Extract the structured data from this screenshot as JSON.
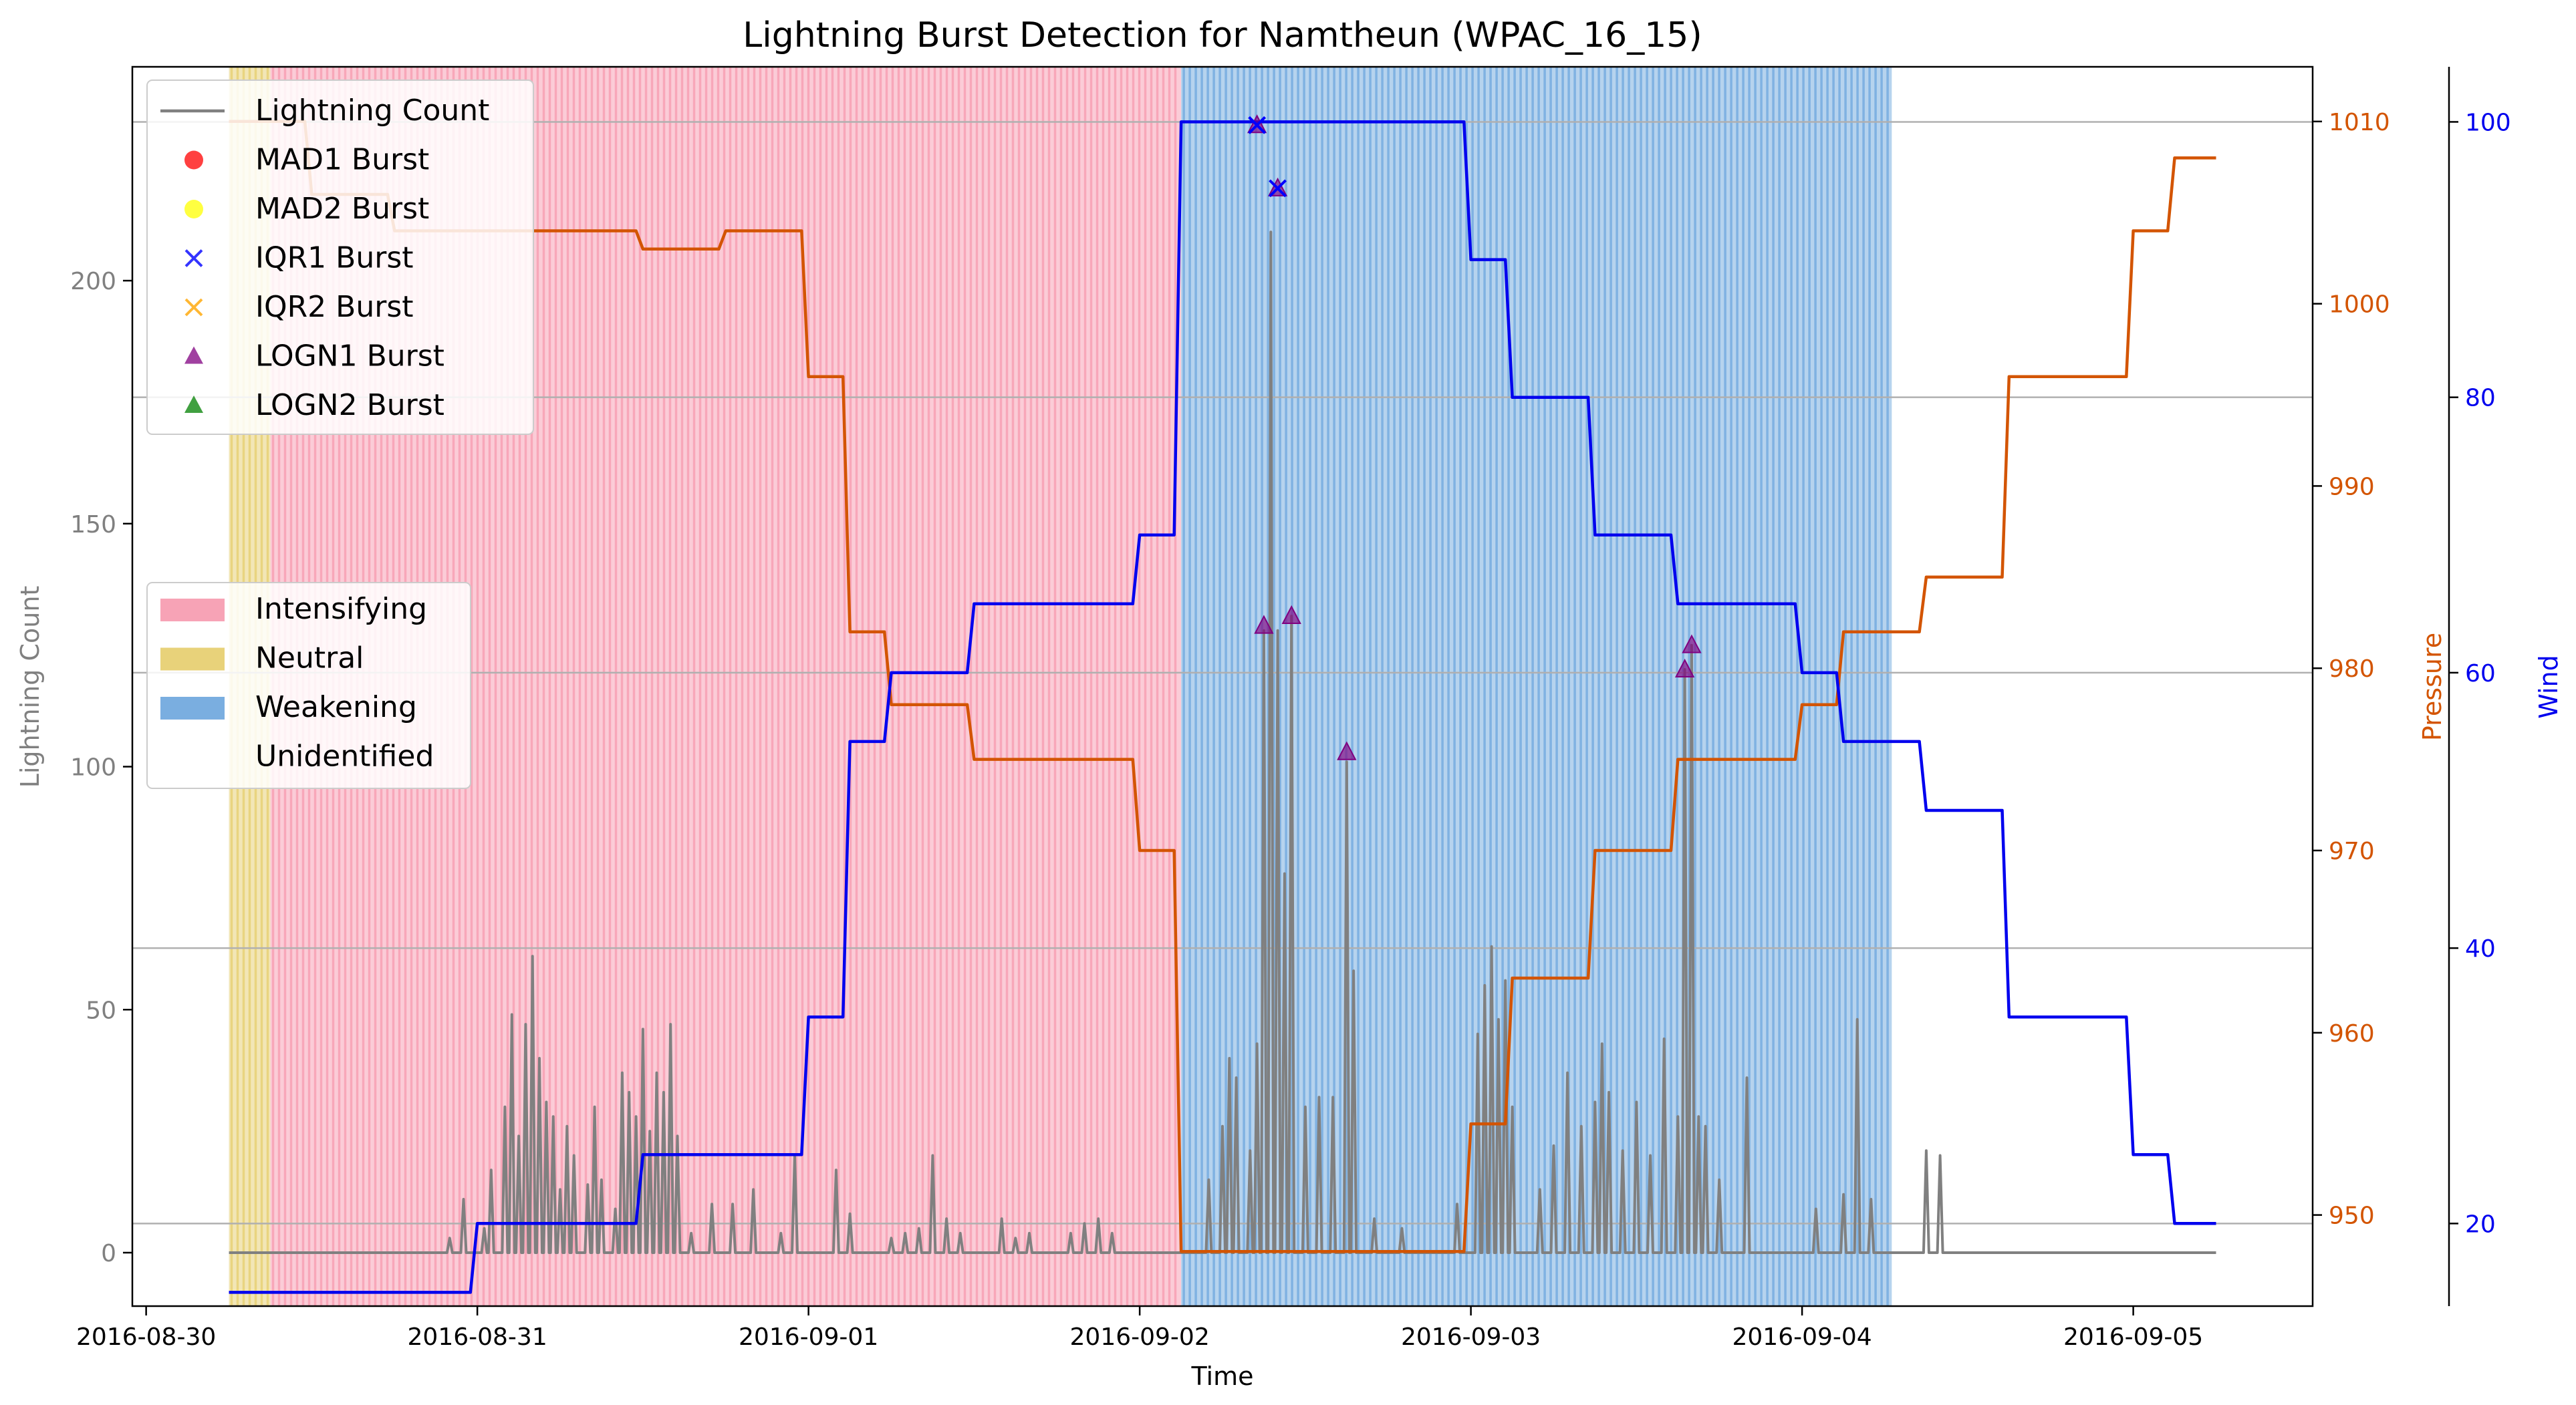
{
  "chart_data": {
    "type": "line",
    "title": "Lightning Burst Detection for Namtheun (WPAC_16_15)",
    "xlabel": "Time",
    "ylabel_left": "Lightning Count",
    "ylabel_pressure": "Pressure",
    "ylabel_wind": "Wind",
    "x_range": [
      "2016-08-29T23:00",
      "2016-09-05T13:00"
    ],
    "x_ticks": [
      "2016-08-30",
      "2016-08-31",
      "2016-09-01",
      "2016-09-02",
      "2016-09-03",
      "2016-09-04",
      "2016-09-05"
    ],
    "ylim_count": [
      -11,
      244
    ],
    "yticks_count": [
      0,
      50,
      100,
      150,
      200
    ],
    "ylim_pressure": [
      945,
      1013
    ],
    "yticks_pressure": [
      950,
      960,
      970,
      980,
      990,
      1000,
      1010
    ],
    "ylim_wind": [
      14,
      104
    ],
    "yticks_wind": [
      20,
      40,
      60,
      80,
      100
    ],
    "grid": "horizontal",
    "colors": {
      "count": "#808080",
      "pressure": "#d35400",
      "wind": "#0000ee",
      "intensifying": "#f7a3b6",
      "neutral": "#e8d27a",
      "weakening": "#7aaee0"
    },
    "phases": [
      {
        "label": "Neutral",
        "start": "2016-08-30T06:00",
        "end": "2016-08-30T09:00",
        "color": "#e8d27a"
      },
      {
        "label": "Intensifying",
        "start": "2016-08-30T09:00",
        "end": "2016-09-02T03:00",
        "color": "#f7a3b6"
      },
      {
        "label": "Weakening",
        "start": "2016-09-02T03:00",
        "end": "2016-09-04T06:30",
        "color": "#7aaee0"
      }
    ],
    "legend_lines": {
      "placement": "upper-left",
      "entries": [
        {
          "label": "Lightning Count",
          "marker": "line",
          "color": "#808080"
        },
        {
          "label": "MAD1 Burst",
          "marker": "circle",
          "color": "#ff0000"
        },
        {
          "label": "MAD2 Burst",
          "marker": "circle",
          "color": "#ffff00"
        },
        {
          "label": "IQR1 Burst",
          "marker": "x",
          "color": "#0000ff"
        },
        {
          "label": "IQR2 Burst",
          "marker": "x",
          "color": "#ffa500"
        },
        {
          "label": "LOGN1 Burst",
          "marker": "triangle",
          "color": "#800080"
        },
        {
          "label": "LOGN2 Burst",
          "marker": "triangle",
          "color": "#008000"
        }
      ]
    },
    "legend_phases": {
      "placement": "center-left",
      "entries": [
        {
          "label": "Intensifying",
          "color": "#f7a3b6"
        },
        {
          "label": "Neutral",
          "color": "#e8d27a"
        },
        {
          "label": "Weakening",
          "color": "#7aaee0"
        },
        {
          "label": "Unidentified",
          "color": "#ffffff"
        }
      ]
    },
    "pressure": [
      {
        "t": "2016-08-30T06:00",
        "v": 1010
      },
      {
        "t": "2016-08-30T12:00",
        "v": 1006
      },
      {
        "t": "2016-08-30T18:00",
        "v": 1004
      },
      {
        "t": "2016-08-31T00:00",
        "v": 1004
      },
      {
        "t": "2016-08-31T06:00",
        "v": 1004
      },
      {
        "t": "2016-08-31T12:00",
        "v": 1003
      },
      {
        "t": "2016-08-31T18:00",
        "v": 1004
      },
      {
        "t": "2016-09-01T00:00",
        "v": 996
      },
      {
        "t": "2016-09-01T03:00",
        "v": 982
      },
      {
        "t": "2016-09-01T06:00",
        "v": 978
      },
      {
        "t": "2016-09-01T12:00",
        "v": 975
      },
      {
        "t": "2016-09-01T18:00",
        "v": 975
      },
      {
        "t": "2016-09-02T00:00",
        "v": 970
      },
      {
        "t": "2016-09-02T03:00",
        "v": 948
      },
      {
        "t": "2016-09-02T06:00",
        "v": 948
      },
      {
        "t": "2016-09-02T12:00",
        "v": 948
      },
      {
        "t": "2016-09-02T18:00",
        "v": 948
      },
      {
        "t": "2016-09-03T00:00",
        "v": 955
      },
      {
        "t": "2016-09-03T03:00",
        "v": 963
      },
      {
        "t": "2016-09-03T06:00",
        "v": 963
      },
      {
        "t": "2016-09-03T09:00",
        "v": 970
      },
      {
        "t": "2016-09-03T15:00",
        "v": 975
      },
      {
        "t": "2016-09-03T21:00",
        "v": 975
      },
      {
        "t": "2016-09-04T00:00",
        "v": 978
      },
      {
        "t": "2016-09-04T03:00",
        "v": 982
      },
      {
        "t": "2016-09-04T09:00",
        "v": 985
      },
      {
        "t": "2016-09-04T15:00",
        "v": 996
      },
      {
        "t": "2016-09-05T00:00",
        "v": 1004
      },
      {
        "t": "2016-09-05T03:00",
        "v": 1008
      },
      {
        "t": "2016-09-05T06:00",
        "v": 1008
      }
    ],
    "wind": [
      {
        "t": "2016-08-30T06:00",
        "v": 15
      },
      {
        "t": "2016-08-30T12:00",
        "v": 15
      },
      {
        "t": "2016-08-30T18:00",
        "v": 15
      },
      {
        "t": "2016-08-31T00:00",
        "v": 20
      },
      {
        "t": "2016-08-31T06:00",
        "v": 20
      },
      {
        "t": "2016-08-31T12:00",
        "v": 25
      },
      {
        "t": "2016-08-31T18:00",
        "v": 25
      },
      {
        "t": "2016-09-01T00:00",
        "v": 35
      },
      {
        "t": "2016-09-01T03:00",
        "v": 55
      },
      {
        "t": "2016-09-01T06:00",
        "v": 60
      },
      {
        "t": "2016-09-01T12:00",
        "v": 65
      },
      {
        "t": "2016-09-01T18:00",
        "v": 65
      },
      {
        "t": "2016-09-02T00:00",
        "v": 70
      },
      {
        "t": "2016-09-02T03:00",
        "v": 100
      },
      {
        "t": "2016-09-02T12:00",
        "v": 100
      },
      {
        "t": "2016-09-02T18:00",
        "v": 100
      },
      {
        "t": "2016-09-03T00:00",
        "v": 90
      },
      {
        "t": "2016-09-03T03:00",
        "v": 80
      },
      {
        "t": "2016-09-03T09:00",
        "v": 70
      },
      {
        "t": "2016-09-03T15:00",
        "v": 65
      },
      {
        "t": "2016-09-03T21:00",
        "v": 65
      },
      {
        "t": "2016-09-04T00:00",
        "v": 60
      },
      {
        "t": "2016-09-04T03:00",
        "v": 55
      },
      {
        "t": "2016-09-04T09:00",
        "v": 50
      },
      {
        "t": "2016-09-04T15:00",
        "v": 35
      },
      {
        "t": "2016-09-05T00:00",
        "v": 25
      },
      {
        "t": "2016-09-05T03:00",
        "v": 20
      },
      {
        "t": "2016-09-05T06:00",
        "v": 20
      }
    ],
    "lightning_spikes": [
      {
        "t": "2016-08-30T22:00",
        "v": 3
      },
      {
        "t": "2016-08-30T23:00",
        "v": 11
      },
      {
        "t": "2016-08-31T00:30",
        "v": 5
      },
      {
        "t": "2016-08-31T01:00",
        "v": 17
      },
      {
        "t": "2016-08-31T02:00",
        "v": 30
      },
      {
        "t": "2016-08-31T02:30",
        "v": 49
      },
      {
        "t": "2016-08-31T03:00",
        "v": 24
      },
      {
        "t": "2016-08-31T03:30",
        "v": 47
      },
      {
        "t": "2016-08-31T04:00",
        "v": 61
      },
      {
        "t": "2016-08-31T04:30",
        "v": 40
      },
      {
        "t": "2016-08-31T05:00",
        "v": 31
      },
      {
        "t": "2016-08-31T05:30",
        "v": 28
      },
      {
        "t": "2016-08-31T06:00",
        "v": 13
      },
      {
        "t": "2016-08-31T06:30",
        "v": 26
      },
      {
        "t": "2016-08-31T07:00",
        "v": 20
      },
      {
        "t": "2016-08-31T08:00",
        "v": 14
      },
      {
        "t": "2016-08-31T08:30",
        "v": 30
      },
      {
        "t": "2016-08-31T09:00",
        "v": 15
      },
      {
        "t": "2016-08-31T10:00",
        "v": 9
      },
      {
        "t": "2016-08-31T10:30",
        "v": 37
      },
      {
        "t": "2016-08-31T11:00",
        "v": 33
      },
      {
        "t": "2016-08-31T11:30",
        "v": 28
      },
      {
        "t": "2016-08-31T12:00",
        "v": 46
      },
      {
        "t": "2016-08-31T12:30",
        "v": 25
      },
      {
        "t": "2016-08-31T13:00",
        "v": 37
      },
      {
        "t": "2016-08-31T13:30",
        "v": 33
      },
      {
        "t": "2016-08-31T14:00",
        "v": 47
      },
      {
        "t": "2016-08-31T14:30",
        "v": 24
      },
      {
        "t": "2016-08-31T15:30",
        "v": 4
      },
      {
        "t": "2016-08-31T17:00",
        "v": 10
      },
      {
        "t": "2016-08-31T18:30",
        "v": 10
      },
      {
        "t": "2016-08-31T20:00",
        "v": 13
      },
      {
        "t": "2016-08-31T22:00",
        "v": 4
      },
      {
        "t": "2016-08-31T23:00",
        "v": 20
      },
      {
        "t": "2016-09-01T02:00",
        "v": 17
      },
      {
        "t": "2016-09-01T03:00",
        "v": 8
      },
      {
        "t": "2016-09-01T06:00",
        "v": 3
      },
      {
        "t": "2016-09-01T07:00",
        "v": 4
      },
      {
        "t": "2016-09-01T08:00",
        "v": 5
      },
      {
        "t": "2016-09-01T09:00",
        "v": 20
      },
      {
        "t": "2016-09-01T10:00",
        "v": 7
      },
      {
        "t": "2016-09-01T11:00",
        "v": 4
      },
      {
        "t": "2016-09-01T14:00",
        "v": 7
      },
      {
        "t": "2016-09-01T15:00",
        "v": 3
      },
      {
        "t": "2016-09-01T16:00",
        "v": 4
      },
      {
        "t": "2016-09-01T19:00",
        "v": 4
      },
      {
        "t": "2016-09-01T20:00",
        "v": 6
      },
      {
        "t": "2016-09-01T21:00",
        "v": 7
      },
      {
        "t": "2016-09-01T22:00",
        "v": 4
      },
      {
        "t": "2016-09-02T05:00",
        "v": 15
      },
      {
        "t": "2016-09-02T06:00",
        "v": 26
      },
      {
        "t": "2016-09-02T06:30",
        "v": 40
      },
      {
        "t": "2016-09-02T07:00",
        "v": 36
      },
      {
        "t": "2016-09-02T08:00",
        "v": 21
      },
      {
        "t": "2016-09-02T08:30",
        "v": 43
      },
      {
        "t": "2016-09-02T09:00",
        "v": 128
      },
      {
        "t": "2016-09-02T09:30",
        "v": 210
      },
      {
        "t": "2016-09-02T10:00",
        "v": 128
      },
      {
        "t": "2016-09-02T10:30",
        "v": 78
      },
      {
        "t": "2016-09-02T11:00",
        "v": 131
      },
      {
        "t": "2016-09-02T12:00",
        "v": 30
      },
      {
        "t": "2016-09-02T13:00",
        "v": 32
      },
      {
        "t": "2016-09-02T14:00",
        "v": 32
      },
      {
        "t": "2016-09-02T15:00",
        "v": 101
      },
      {
        "t": "2016-09-02T15:30",
        "v": 58
      },
      {
        "t": "2016-09-02T17:00",
        "v": 7
      },
      {
        "t": "2016-09-02T19:00",
        "v": 5
      },
      {
        "t": "2016-09-02T23:00",
        "v": 10
      },
      {
        "t": "2016-09-03T00:30",
        "v": 45
      },
      {
        "t": "2016-09-03T01:00",
        "v": 55
      },
      {
        "t": "2016-09-03T01:30",
        "v": 63
      },
      {
        "t": "2016-09-03T02:00",
        "v": 48
      },
      {
        "t": "2016-09-03T02:30",
        "v": 56
      },
      {
        "t": "2016-09-03T03:00",
        "v": 30
      },
      {
        "t": "2016-09-03T05:00",
        "v": 13
      },
      {
        "t": "2016-09-03T06:00",
        "v": 22
      },
      {
        "t": "2016-09-03T07:00",
        "v": 37
      },
      {
        "t": "2016-09-03T08:00",
        "v": 26
      },
      {
        "t": "2016-09-03T09:00",
        "v": 31
      },
      {
        "t": "2016-09-03T09:30",
        "v": 43
      },
      {
        "t": "2016-09-03T10:00",
        "v": 33
      },
      {
        "t": "2016-09-03T11:00",
        "v": 21
      },
      {
        "t": "2016-09-03T12:00",
        "v": 31
      },
      {
        "t": "2016-09-03T13:00",
        "v": 20
      },
      {
        "t": "2016-09-03T14:00",
        "v": 44
      },
      {
        "t": "2016-09-03T15:00",
        "v": 28
      },
      {
        "t": "2016-09-03T15:30",
        "v": 120
      },
      {
        "t": "2016-09-03T16:00",
        "v": 125
      },
      {
        "t": "2016-09-03T16:30",
        "v": 28
      },
      {
        "t": "2016-09-03T17:00",
        "v": 26
      },
      {
        "t": "2016-09-03T18:00",
        "v": 15
      },
      {
        "t": "2016-09-03T20:00",
        "v": 36
      },
      {
        "t": "2016-09-04T01:00",
        "v": 9
      },
      {
        "t": "2016-09-04T03:00",
        "v": 12
      },
      {
        "t": "2016-09-04T04:00",
        "v": 48
      },
      {
        "t": "2016-09-04T05:00",
        "v": 11
      },
      {
        "t": "2016-09-04T09:00",
        "v": 21
      },
      {
        "t": "2016-09-04T10:00",
        "v": 20
      }
    ],
    "iqr1_bursts": [
      {
        "t": "2016-09-02T08:30",
        "v": 232
      },
      {
        "t": "2016-09-02T10:00",
        "v": 219
      }
    ],
    "logn1_bursts": [
      {
        "t": "2016-09-02T08:30",
        "v": 232
      },
      {
        "t": "2016-09-02T10:00",
        "v": 219
      },
      {
        "t": "2016-09-02T09:00",
        "v": 129
      },
      {
        "t": "2016-09-02T11:00",
        "v": 131
      },
      {
        "t": "2016-09-02T15:00",
        "v": 103
      },
      {
        "t": "2016-09-03T15:30",
        "v": 120
      },
      {
        "t": "2016-09-03T16:00",
        "v": 125
      }
    ]
  }
}
